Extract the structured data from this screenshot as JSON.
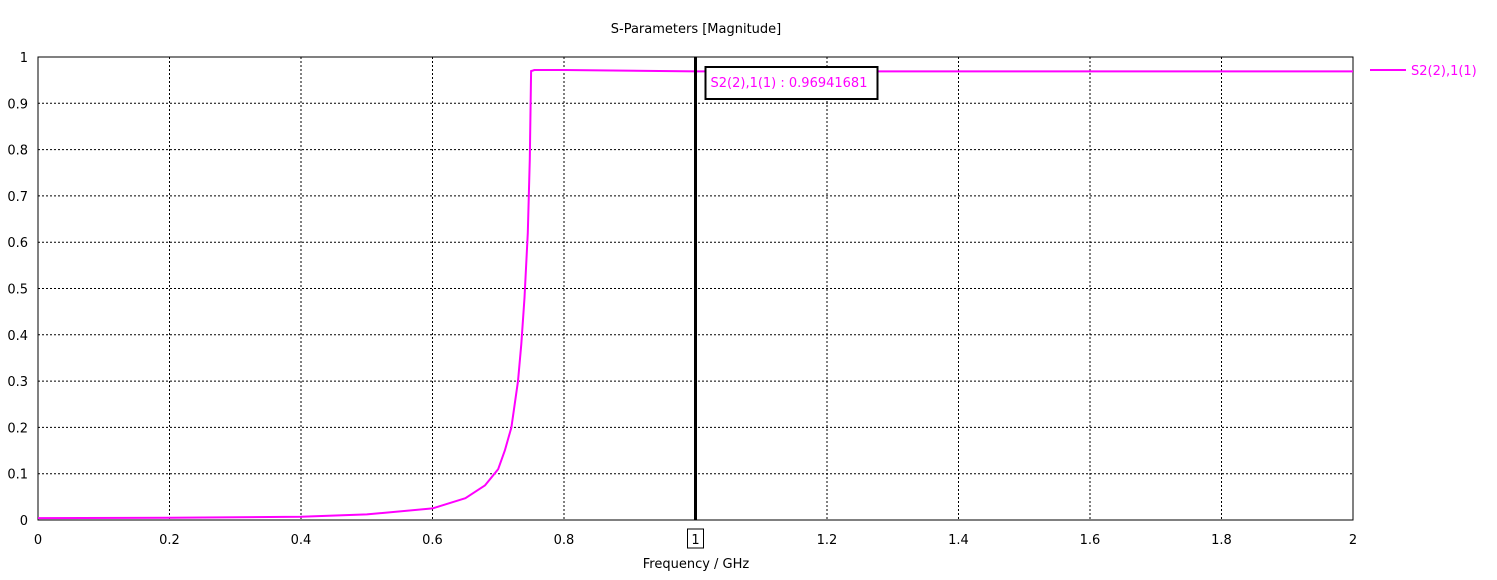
{
  "colors": {
    "series": "#ff00ff",
    "grid": "#000000",
    "axis": "#000000",
    "background": "#ffffff"
  },
  "chart_data": {
    "type": "line",
    "title": "S-Parameters [Magnitude]",
    "xlabel": "Frequency / GHz",
    "ylabel": "",
    "xlim": [
      0,
      2
    ],
    "ylim": [
      0,
      1
    ],
    "grid": true,
    "grid_style": "dotted",
    "x_ticks": [
      0,
      0.2,
      0.4,
      0.6,
      0.8,
      1,
      1.2,
      1.4,
      1.6,
      1.8,
      2
    ],
    "x_tick_labels": [
      "0",
      "0.2",
      "0.4",
      "0.6",
      "0.8",
      "1",
      "1.2",
      "1.4",
      "1.6",
      "1.8",
      "2"
    ],
    "y_ticks": [
      0,
      0.1,
      0.2,
      0.3,
      0.4,
      0.5,
      0.6,
      0.7,
      0.8,
      0.9,
      1
    ],
    "y_tick_labels": [
      "0",
      "0.1",
      "0.2",
      "0.3",
      "0.4",
      "0.5",
      "0.6",
      "0.7",
      "0.8",
      "0.9",
      "1"
    ],
    "legend": {
      "position": "right",
      "entries": [
        "S2(2),1(1)"
      ]
    },
    "series": [
      {
        "name": "S2(2),1(1)",
        "x": [
          0,
          0.2,
          0.4,
          0.5,
          0.6,
          0.65,
          0.68,
          0.7,
          0.71,
          0.72,
          0.73,
          0.735,
          0.74,
          0.745,
          0.748,
          0.75,
          0.751,
          0.755,
          0.8,
          1.0,
          1.5,
          2.0
        ],
        "y": [
          0.004,
          0.005,
          0.007,
          0.012,
          0.025,
          0.047,
          0.075,
          0.11,
          0.15,
          0.2,
          0.3,
          0.38,
          0.48,
          0.62,
          0.78,
          0.97,
          0.97,
          0.972,
          0.972,
          0.969,
          0.969,
          0.969
        ]
      }
    ],
    "marker": {
      "x": 1,
      "x_label": "1",
      "label": "S2(2),1(1) : 0.96941681",
      "value": 0.96941681
    }
  }
}
